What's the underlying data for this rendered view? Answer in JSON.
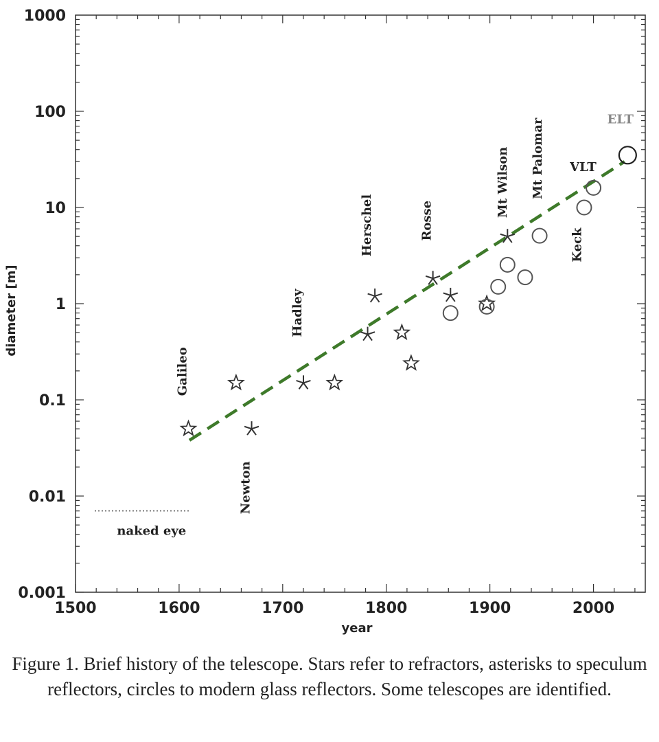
{
  "chart_data": {
    "type": "scatter",
    "title": "",
    "xlabel": "year",
    "ylabel": "diameter [m]",
    "xlim": [
      1500,
      2050
    ],
    "ylim": [
      0.001,
      1000
    ],
    "y_scale": "log",
    "x_ticks": [
      1500,
      1600,
      1700,
      1800,
      1900,
      2000
    ],
    "x_tick_labels": [
      "1500",
      "1600",
      "1700",
      "1800",
      "1900",
      "2000"
    ],
    "y_ticks": [
      0.001,
      0.01,
      0.1,
      1,
      10,
      100,
      1000
    ],
    "y_tick_labels": [
      "0.001",
      "0.01",
      "0.1",
      "1",
      "10",
      "100",
      "1000"
    ],
    "grid": false,
    "series": [
      {
        "kind": "refractor (star)",
        "points": [
          {
            "x": 1609,
            "y": 0.05
          },
          {
            "x": 1655,
            "y": 0.15
          },
          {
            "x": 1750,
            "y": 0.15
          },
          {
            "x": 1815,
            "y": 0.5
          },
          {
            "x": 1824,
            "y": 0.24
          },
          {
            "x": 1897,
            "y": 1.0
          }
        ]
      },
      {
        "kind": "speculum reflector (asterisk)",
        "points": [
          {
            "x": 1670,
            "y": 0.05
          },
          {
            "x": 1720,
            "y": 0.15
          },
          {
            "x": 1782,
            "y": 0.48
          },
          {
            "x": 1789,
            "y": 1.2
          },
          {
            "x": 1845,
            "y": 1.83
          },
          {
            "x": 1862,
            "y": 1.22
          },
          {
            "x": 1917,
            "y": 5.0
          }
        ]
      },
      {
        "kind": "modern glass reflector (circle)",
        "points": [
          {
            "x": 1862,
            "y": 0.8
          },
          {
            "x": 1897,
            "y": 0.93
          },
          {
            "x": 1908,
            "y": 1.5
          },
          {
            "x": 1917,
            "y": 2.54
          },
          {
            "x": 1934,
            "y": 1.88
          },
          {
            "x": 1948,
            "y": 5.08
          },
          {
            "x": 1991,
            "y": 10.0
          },
          {
            "x": 2000,
            "y": 16.0
          }
        ]
      },
      {
        "kind": "ELT (open circle)",
        "points": [
          {
            "x": 2033,
            "y": 35
          }
        ]
      }
    ],
    "trend_line": {
      "x": [
        1610,
        2030
      ],
      "y": [
        0.038,
        30
      ]
    },
    "naked_eye": {
      "label": "naked eye",
      "x": [
        1500,
        1610
      ],
      "y": 0.007
    },
    "annotations": [
      {
        "text": "Galileo",
        "x": 1607,
        "y": 0.11,
        "rotate": true
      },
      {
        "text": "Newton",
        "x": 1668,
        "y": 0.0065,
        "rotate": true
      },
      {
        "text": "Hadley",
        "x": 1718,
        "y": 0.45,
        "rotate": true
      },
      {
        "text": "Herschel",
        "x": 1785,
        "y": 3.1,
        "rotate": true
      },
      {
        "text": "Rosse",
        "x": 1843,
        "y": 4.5,
        "rotate": true
      },
      {
        "text": "Mt Wilson",
        "x": 1916,
        "y": 7.8,
        "rotate": true
      },
      {
        "text": "Mt Palomar",
        "x": 1950,
        "y": 12.2,
        "rotate": true
      },
      {
        "text": "Keck",
        "x": 1988,
        "y": 2.7,
        "rotate": true
      },
      {
        "text": "VLT",
        "x": 1990,
        "y": 24,
        "rotate": false
      },
      {
        "text": "ELT",
        "x": 2026,
        "y": 75,
        "rotate": false
      }
    ]
  },
  "caption": "Figure 1. Brief history of the telescope. Stars refer to refractors, asterisks to speculum reflectors, circles to modern glass reflectors. Some telescopes are identified."
}
